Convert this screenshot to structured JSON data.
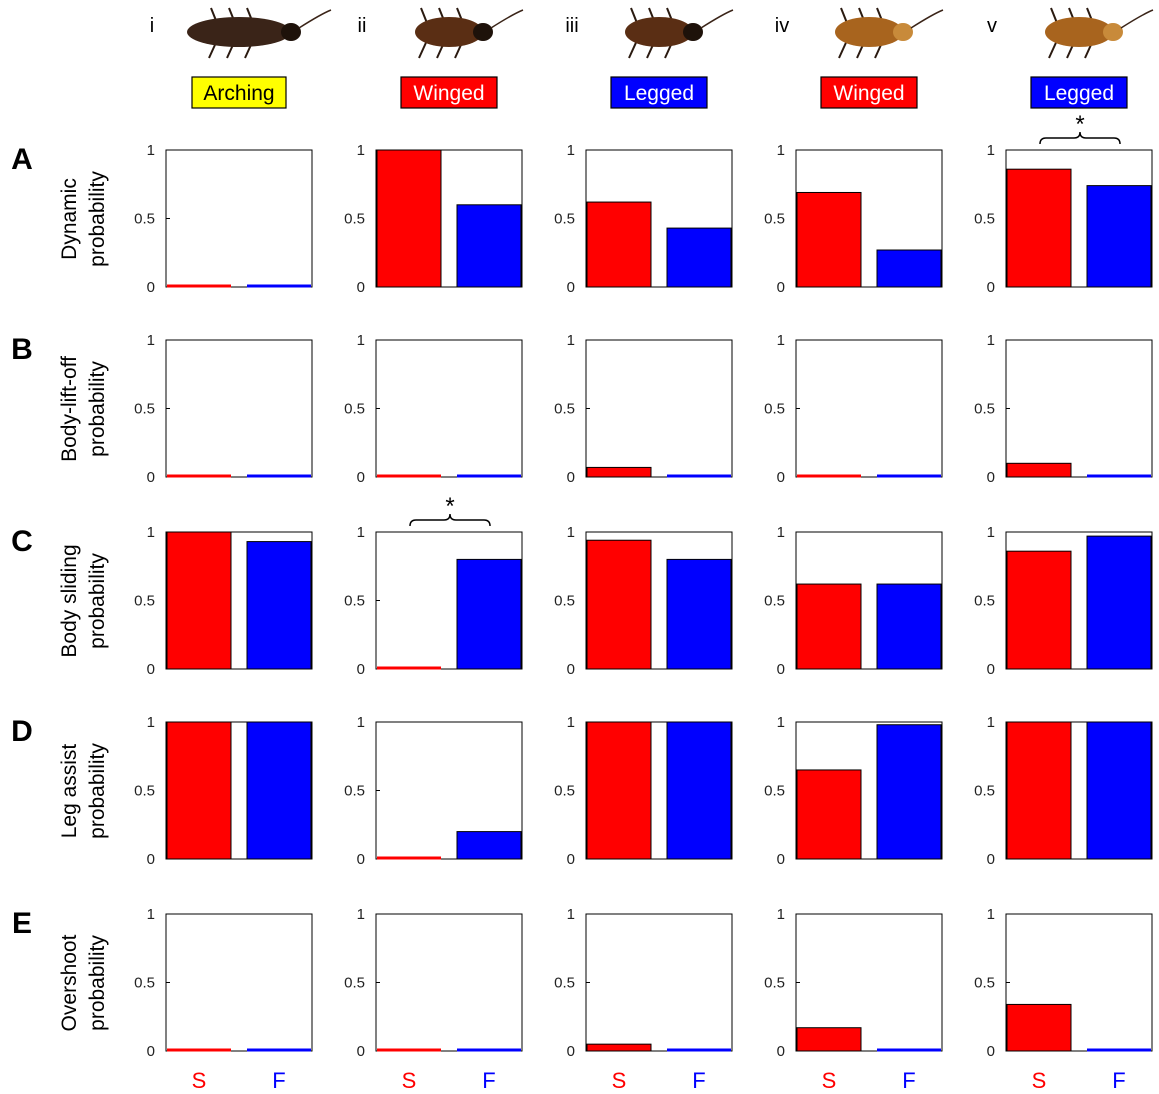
{
  "columns": [
    {
      "numeral": "i",
      "type_label": "Arching",
      "label_bg": "#ffff00",
      "label_fg": "#000000",
      "icon": "hissing-cockroach-icon"
    },
    {
      "numeral": "ii",
      "type_label": "Winged",
      "label_bg": "#ff0000",
      "label_fg": "#ffffff",
      "icon": "winged-cockroach-icon"
    },
    {
      "numeral": "iii",
      "type_label": "Legged",
      "label_bg": "#0000ff",
      "label_fg": "#ffffff",
      "icon": "winged-cockroach-icon"
    },
    {
      "numeral": "iv",
      "type_label": "Winged",
      "label_bg": "#ff0000",
      "label_fg": "#ffffff",
      "icon": "discoid-cockroach-icon"
    },
    {
      "numeral": "v",
      "type_label": "Legged",
      "label_bg": "#0000ff",
      "label_fg": "#ffffff",
      "icon": "discoid-cockroach-icon"
    }
  ],
  "rows": [
    {
      "letter": "A",
      "ylabel": [
        "Dynamic",
        "probability"
      ]
    },
    {
      "letter": "B",
      "ylabel": [
        "Body-lift-off",
        "probability"
      ]
    },
    {
      "letter": "C",
      "ylabel": [
        "Body sliding",
        "probability"
      ]
    },
    {
      "letter": "D",
      "ylabel": [
        "Leg assist",
        "probability"
      ]
    },
    {
      "letter": "E",
      "ylabel": [
        "Overshoot",
        "probability"
      ]
    }
  ],
  "chart_data": {
    "type": "bar",
    "categories": [
      "S",
      "F"
    ],
    "category_colors": {
      "S": "#ff0000",
      "F": "#0000ff"
    },
    "yticks": [
      "0",
      "0.5",
      "1"
    ],
    "ylim": [
      0,
      1
    ],
    "significance_marker": "*",
    "values": [
      [
        [
          0.0,
          0.0
        ],
        [
          1.0,
          0.6
        ],
        [
          0.62,
          0.43
        ],
        [
          0.69,
          0.27
        ],
        [
          0.86,
          0.74
        ]
      ],
      [
        [
          0.0,
          0.0
        ],
        [
          0.0,
          0.0
        ],
        [
          0.07,
          0.0
        ],
        [
          0.0,
          0.0
        ],
        [
          0.1,
          0.0
        ]
      ],
      [
        [
          1.0,
          0.93
        ],
        [
          0.0,
          0.8
        ],
        [
          0.94,
          0.8
        ],
        [
          0.62,
          0.62
        ],
        [
          0.86,
          0.97
        ]
      ],
      [
        [
          1.0,
          1.0
        ],
        [
          0.0,
          0.2
        ],
        [
          1.0,
          1.0
        ],
        [
          0.65,
          0.98
        ],
        [
          1.0,
          1.0
        ]
      ],
      [
        [
          0.0,
          0.0
        ],
        [
          0.0,
          0.0
        ],
        [
          0.05,
          0.0
        ],
        [
          0.17,
          0.0
        ],
        [
          0.34,
          0.0
        ]
      ]
    ],
    "significant": [
      [
        0,
        4
      ],
      [
        2,
        1
      ]
    ]
  }
}
